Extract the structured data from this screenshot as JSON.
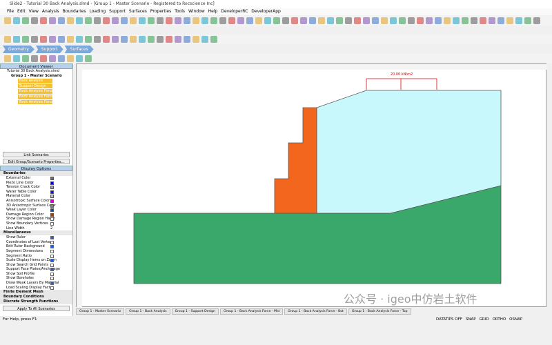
{
  "window": {
    "title": "Slide2 - Tutorial 30 Back Analysis.slmd - [Group 1 - Master Scenario - Registered to Rocscience Inc]"
  },
  "menu": [
    "File",
    "Edit",
    "View",
    "Analysis",
    "Boundaries",
    "Loading",
    "Support",
    "Surfaces",
    "Properties",
    "Tools",
    "Window",
    "Help",
    "DeveloperRC",
    "DeveloperApp"
  ],
  "workflow_tabs": [
    "Geometry",
    "Support",
    "Surfaces"
  ],
  "document_viewer": {
    "title": "Document Viewer",
    "file": "Tutorial 30 Back Analysis.slmd",
    "group": "Group 1 - Master Scenario",
    "scenarios": [
      "Back Analysis",
      "Support Design",
      "Back Analysis Force - Mid",
      "Back Analysis Force - Bot",
      "Back Analysis Force - Top"
    ],
    "link_button": "Link Scenarios",
    "edit_button": "Edit Group/Scenario Properties..."
  },
  "display_options": {
    "title": "Display Options",
    "boundaries": {
      "title": "Boundaries",
      "items": [
        {
          "label": "External Color",
          "color": "#707070"
        },
        {
          "label": "Piezo Line Color",
          "color": "#0000c0"
        },
        {
          "label": "Tension Crack Color",
          "color": "#a0a0a0"
        },
        {
          "label": "Water Table Color",
          "color": "#1010e0"
        },
        {
          "label": "Material Color",
          "color": "#c0c0c0"
        },
        {
          "label": "Anisotropic Surface Color",
          "color": "#d000d0"
        },
        {
          "label": "3D Anisotropic Surface Color",
          "color": "#808080"
        },
        {
          "label": "Weak Layer Color",
          "color": "#0050a0"
        },
        {
          "label": "Damage Region Color",
          "color": "#a04010"
        }
      ],
      "checks": [
        {
          "label": "Show Damage Region Hatch",
          "checked": false
        },
        {
          "label": "Show Boundary Vertices",
          "checked": false
        }
      ],
      "line_width": {
        "label": "Line Width",
        "value": "2"
      }
    },
    "miscellaneous": {
      "title": "Miscellaneous",
      "items": [
        {
          "label": "Show Ruler",
          "checked": true
        },
        {
          "label": "Coordinates of Last Vertex",
          "checked": false
        },
        {
          "label": "Edit Ruler Background",
          "checked": true
        },
        {
          "label": "Segment Dimensions",
          "checked": false
        },
        {
          "label": "Segment Ratio",
          "checked": false
        },
        {
          "label": "Scale Display Items on Zoom",
          "checked": true
        },
        {
          "label": "Show Search Grid Points",
          "checked": false
        },
        {
          "label": "Support Face Plates/Anchorage",
          "checked": true
        },
        {
          "label": "Show Soil Profile",
          "checked": false
        },
        {
          "label": "Show Boreholes",
          "checked": false
        },
        {
          "label": "Draw Weak Layers By Material",
          "checked": true
        },
        {
          "label": "Load Scaling Display Factor",
          "checked": false
        }
      ]
    },
    "sections": [
      "Finite Element Mesh",
      "Boundary Conditions",
      "Discrete Strength Functions"
    ],
    "apply_button": "Apply To All Scenarios"
  },
  "model": {
    "load_label": "20.00 kN/m2"
  },
  "scenario_tabs": [
    "Group 1 - Master Scenario",
    "Group 1 - Back Analysis",
    "Group 1 - Support Design",
    "Group 1 - Back Analysis Force - Mid",
    "Group 1 - Back Analysis Force - Bot",
    "Group 1 - Back Analysis Force - Top"
  ],
  "status_bar": {
    "help": "For Help, press F1",
    "indicators": [
      "DATATIPS OFF",
      "SNAP",
      "GRID",
      "ORTHO",
      "OSNAP"
    ]
  },
  "watermark": "公众号 · igeo中仿岩土软件"
}
